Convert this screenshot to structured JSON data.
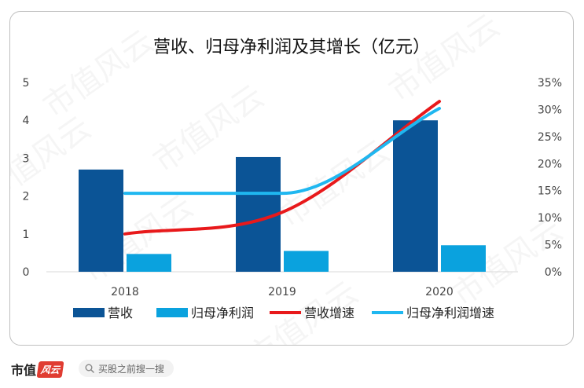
{
  "chart_data": {
    "type": "bar",
    "title": "营收、归母净利润及其增长（亿元）",
    "categories": [
      "2018",
      "2019",
      "2020"
    ],
    "y_left": {
      "ylim": [
        0,
        5
      ],
      "ticks": [
        "0",
        "1",
        "2",
        "3",
        "4",
        "5"
      ]
    },
    "y_right": {
      "ylim": [
        0,
        35
      ],
      "ticks": [
        "0%",
        "5%",
        "10%",
        "15%",
        "20%",
        "25%",
        "30%",
        "35%"
      ]
    },
    "bar_series": [
      {
        "name": "营收",
        "values": [
          2.7,
          3.03,
          4.0
        ],
        "color": "#0b5496"
      },
      {
        "name": "归母净利润",
        "values": [
          0.47,
          0.55,
          0.7
        ],
        "color": "#0aa2de"
      }
    ],
    "line_series": [
      {
        "name": "营收增速",
        "values": [
          7,
          11,
          31.5
        ],
        "color": "#e8191b"
      },
      {
        "name": "归母净利润增速",
        "values": [
          14.5,
          14.5,
          30.2
        ],
        "color": "#1fb7f0"
      }
    ],
    "legend_placement": "bottom",
    "grid": false
  },
  "watermark_text": "市值风云",
  "footer": {
    "brand": "市值",
    "brand_mark": "风云",
    "search_placeholder": "买股之前搜一搜",
    "search_icon": "search-icon"
  }
}
